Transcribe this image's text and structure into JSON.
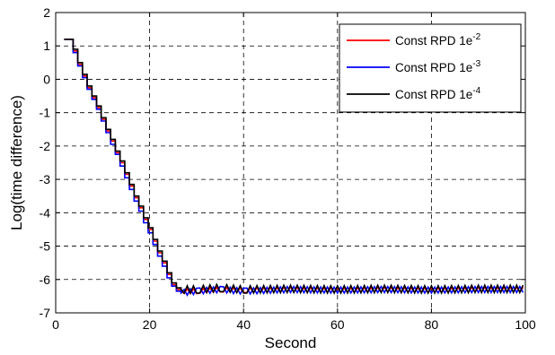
{
  "chart_data": {
    "type": "line",
    "title": "",
    "xlabel": "Second",
    "ylabel": "Log(time difference)",
    "xlim": [
      0,
      100
    ],
    "ylim": [
      -7,
      2
    ],
    "xticks": [
      "0",
      "20",
      "40",
      "60",
      "80",
      "100"
    ],
    "yticks": [
      "2",
      "1",
      "0",
      "-1",
      "-2",
      "-3",
      "-4",
      "-5",
      "-6",
      "-7"
    ],
    "grid": true,
    "legend_position": "top-right",
    "series": [
      {
        "name": "Const RPD 1e-2",
        "label_base": "Const RPD 1e",
        "label_exp": "-2",
        "color": "#ff0000",
        "points": [
          [
            1.8,
            1.2
          ],
          [
            2.7,
            1.2
          ],
          [
            3.7,
            0.85
          ],
          [
            4.7,
            0.45
          ],
          [
            5.7,
            0.1
          ],
          [
            6.7,
            -0.25
          ],
          [
            7.7,
            -0.55
          ],
          [
            8.7,
            -0.85
          ],
          [
            9.7,
            -1.2
          ],
          [
            10.7,
            -1.55
          ],
          [
            11.7,
            -1.85
          ],
          [
            12.7,
            -2.2
          ],
          [
            13.7,
            -2.5
          ],
          [
            14.7,
            -2.85
          ],
          [
            15.7,
            -3.2
          ],
          [
            16.7,
            -3.55
          ],
          [
            17.7,
            -3.85
          ],
          [
            18.7,
            -4.2
          ],
          [
            19.7,
            -4.5
          ],
          [
            20.7,
            -4.85
          ],
          [
            21.7,
            -5.2
          ],
          [
            22.7,
            -5.5
          ],
          [
            23.7,
            -5.85
          ],
          [
            24.7,
            -6.15
          ],
          [
            25.7,
            -6.3
          ],
          [
            26.7,
            -6.35
          ],
          [
            30,
            -6.35
          ],
          [
            35,
            -6.3
          ],
          [
            40,
            -6.32
          ],
          [
            50,
            -6.3
          ],
          [
            60,
            -6.32
          ],
          [
            70,
            -6.3
          ],
          [
            80,
            -6.32
          ],
          [
            90,
            -6.3
          ],
          [
            99.5,
            -6.3
          ]
        ]
      },
      {
        "name": "Const RPD 1e-3",
        "label_base": "Const RPD 1e",
        "label_exp": "-3",
        "color": "#0000ff",
        "points": [
          [
            1.8,
            1.2
          ],
          [
            2.7,
            1.2
          ],
          [
            3.7,
            0.8
          ],
          [
            4.7,
            0.4
          ],
          [
            5.7,
            0.05
          ],
          [
            6.7,
            -0.3
          ],
          [
            7.7,
            -0.6
          ],
          [
            8.7,
            -0.9
          ],
          [
            9.7,
            -1.25
          ],
          [
            10.7,
            -1.6
          ],
          [
            11.7,
            -1.95
          ],
          [
            12.7,
            -2.25
          ],
          [
            13.7,
            -2.6
          ],
          [
            14.7,
            -2.95
          ],
          [
            15.7,
            -3.3
          ],
          [
            16.7,
            -3.65
          ],
          [
            17.7,
            -3.95
          ],
          [
            18.7,
            -4.3
          ],
          [
            19.7,
            -4.6
          ],
          [
            20.7,
            -4.95
          ],
          [
            21.7,
            -5.3
          ],
          [
            22.7,
            -5.6
          ],
          [
            23.7,
            -5.95
          ],
          [
            24.7,
            -6.2
          ],
          [
            25.7,
            -6.35
          ],
          [
            26.7,
            -6.4
          ],
          [
            30,
            -6.35
          ],
          [
            35,
            -6.3
          ],
          [
            40,
            -6.35
          ],
          [
            50,
            -6.3
          ],
          [
            60,
            -6.32
          ],
          [
            70,
            -6.3
          ],
          [
            80,
            -6.32
          ],
          [
            90,
            -6.3
          ],
          [
            99.5,
            -6.3
          ]
        ]
      },
      {
        "name": "Const RPD 1e-4",
        "label_base": "Const RPD 1e",
        "label_exp": "-4",
        "color": "#000000",
        "points": [
          [
            1.8,
            1.2
          ],
          [
            2.7,
            1.2
          ],
          [
            3.7,
            0.9
          ],
          [
            4.7,
            0.5
          ],
          [
            5.7,
            0.15
          ],
          [
            6.7,
            -0.2
          ],
          [
            7.7,
            -0.5
          ],
          [
            8.7,
            -0.8
          ],
          [
            9.7,
            -1.15
          ],
          [
            10.7,
            -1.5
          ],
          [
            11.7,
            -1.8
          ],
          [
            12.7,
            -2.15
          ],
          [
            13.7,
            -2.45
          ],
          [
            14.7,
            -2.8
          ],
          [
            15.7,
            -3.15
          ],
          [
            16.7,
            -3.5
          ],
          [
            17.7,
            -3.8
          ],
          [
            18.7,
            -4.15
          ],
          [
            19.7,
            -4.45
          ],
          [
            20.7,
            -4.8
          ],
          [
            21.7,
            -5.15
          ],
          [
            22.7,
            -5.45
          ],
          [
            23.7,
            -5.8
          ],
          [
            24.7,
            -6.1
          ],
          [
            25.7,
            -6.25
          ],
          [
            26.7,
            -6.3
          ],
          [
            30,
            -6.3
          ],
          [
            35,
            -6.25
          ],
          [
            40,
            -6.3
          ],
          [
            50,
            -6.28
          ],
          [
            60,
            -6.3
          ],
          [
            70,
            -6.28
          ],
          [
            80,
            -6.3
          ],
          [
            90,
            -6.28
          ],
          [
            99.5,
            -6.28
          ]
        ]
      }
    ]
  }
}
